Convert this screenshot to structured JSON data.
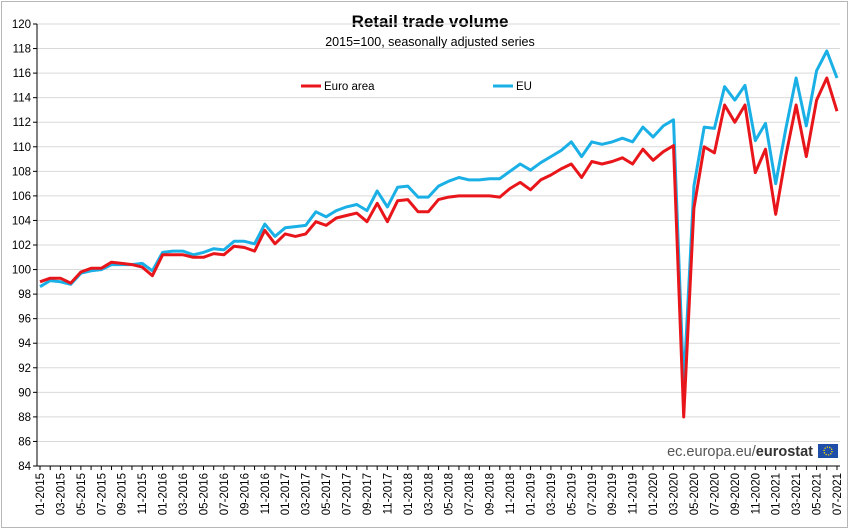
{
  "chart_data": {
    "type": "line",
    "title": "Retail trade volume",
    "subtitle": "2015=100, seasonally adjusted series",
    "xlabel": "",
    "ylabel": "",
    "ylim": [
      84,
      120
    ],
    "ytick_step": 2,
    "grid": "horizontal",
    "legend_position": "top-center",
    "source": {
      "prefix": "ec.europa.eu/",
      "brand": "eurostat"
    },
    "x": [
      "01-2015",
      "02-2015",
      "03-2015",
      "04-2015",
      "05-2015",
      "06-2015",
      "07-2015",
      "08-2015",
      "09-2015",
      "10-2015",
      "11-2015",
      "12-2015",
      "01-2016",
      "02-2016",
      "03-2016",
      "04-2016",
      "05-2016",
      "06-2016",
      "07-2016",
      "08-2016",
      "09-2016",
      "10-2016",
      "11-2016",
      "12-2016",
      "01-2017",
      "02-2017",
      "03-2017",
      "04-2017",
      "05-2017",
      "06-2017",
      "07-2017",
      "08-2017",
      "09-2017",
      "10-2017",
      "11-2017",
      "12-2017",
      "01-2018",
      "02-2018",
      "03-2018",
      "04-2018",
      "05-2018",
      "06-2018",
      "07-2018",
      "08-2018",
      "09-2018",
      "10-2018",
      "11-2018",
      "12-2018",
      "01-2019",
      "02-2019",
      "03-2019",
      "04-2019",
      "05-2019",
      "06-2019",
      "07-2019",
      "08-2019",
      "09-2019",
      "10-2019",
      "11-2019",
      "12-2019",
      "01-2020",
      "02-2020",
      "03-2020",
      "04-2020",
      "05-2020",
      "06-2020",
      "07-2020",
      "08-2020",
      "09-2020",
      "10-2020",
      "11-2020",
      "12-2020",
      "01-2021",
      "02-2021",
      "03-2021",
      "04-2021",
      "05-2021",
      "06-2021",
      "07-2021"
    ],
    "x_tick_labels": [
      "01-2015",
      "03-2015",
      "05-2015",
      "07-2015",
      "09-2015",
      "11-2015",
      "01-2016",
      "03-2016",
      "05-2016",
      "07-2016",
      "09-2016",
      "11-2016",
      "01-2017",
      "03-2017",
      "05-2017",
      "07-2017",
      "09-2017",
      "11-2017",
      "01-2018",
      "03-2018",
      "05-2018",
      "07-2018",
      "09-2018",
      "11-2018",
      "01-2019",
      "03-2019",
      "05-2019",
      "07-2019",
      "09-2019",
      "11-2019",
      "01-2020",
      "03-2020",
      "05-2020",
      "07-2020",
      "09-2020",
      "11-2020",
      "01-2021",
      "03-2021",
      "05-2021",
      "07-2021"
    ],
    "series": [
      {
        "name": "EU",
        "color": "#1ab0e6",
        "values": [
          98.6,
          99.1,
          99.0,
          98.8,
          99.7,
          99.9,
          100.0,
          100.4,
          100.4,
          100.4,
          100.5,
          99.9,
          101.4,
          101.5,
          101.5,
          101.2,
          101.4,
          101.7,
          101.6,
          102.3,
          102.3,
          102.1,
          103.7,
          102.7,
          103.4,
          103.5,
          103.6,
          104.7,
          104.3,
          104.8,
          105.1,
          105.3,
          104.8,
          106.4,
          105.1,
          106.7,
          106.8,
          105.9,
          105.9,
          106.8,
          107.2,
          107.5,
          107.3,
          107.3,
          107.4,
          107.4,
          108.0,
          108.6,
          108.1,
          108.7,
          109.2,
          109.7,
          110.4,
          109.2,
          110.4,
          110.2,
          110.4,
          110.7,
          110.4,
          111.6,
          110.8,
          111.7,
          112.2,
          90.5,
          106.8,
          111.6,
          111.5,
          114.9,
          113.8,
          115.0,
          110.5,
          111.9,
          107.0,
          111.5,
          115.6,
          111.7,
          116.2,
          117.8,
          115.6
        ]
      },
      {
        "name": "Euro area",
        "color": "#e8161b",
        "values": [
          99.0,
          99.3,
          99.3,
          98.9,
          99.8,
          100.1,
          100.1,
          100.6,
          100.5,
          100.4,
          100.2,
          99.5,
          101.2,
          101.2,
          101.2,
          101.0,
          101.0,
          101.3,
          101.2,
          101.9,
          101.8,
          101.5,
          103.2,
          102.1,
          102.9,
          102.7,
          102.9,
          103.9,
          103.6,
          104.2,
          104.4,
          104.6,
          103.9,
          105.4,
          103.9,
          105.6,
          105.7,
          104.7,
          104.7,
          105.7,
          105.9,
          106.0,
          106.0,
          106.0,
          106.0,
          105.9,
          106.6,
          107.1,
          106.5,
          107.3,
          107.7,
          108.2,
          108.6,
          107.5,
          108.8,
          108.6,
          108.8,
          109.1,
          108.6,
          109.8,
          108.9,
          109.6,
          110.1,
          88.0,
          105.0,
          110.0,
          109.5,
          113.4,
          112.0,
          113.4,
          107.9,
          109.8,
          104.5,
          109.3,
          113.4,
          109.2,
          113.8,
          115.6,
          112.9
        ]
      }
    ]
  }
}
